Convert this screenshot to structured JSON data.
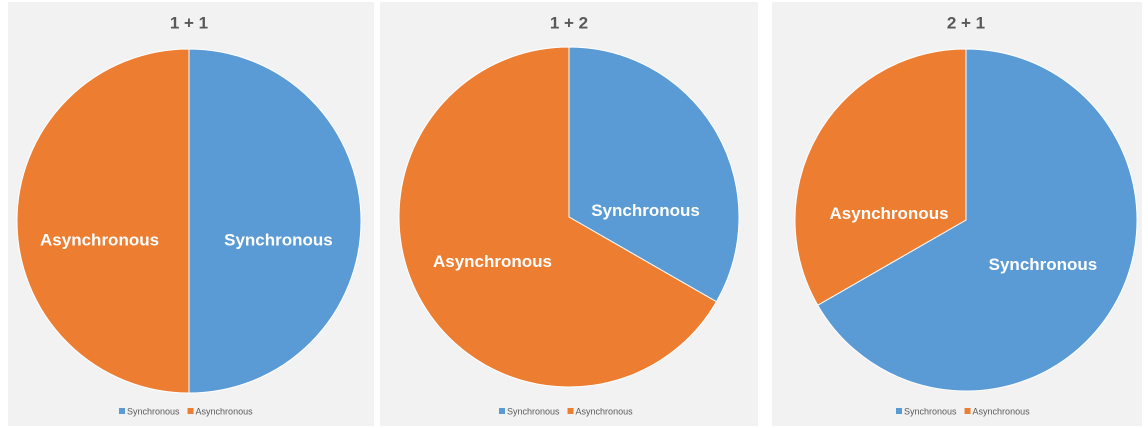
{
  "chart_data": [
    {
      "type": "pie",
      "title": "1 + 1",
      "categories": [
        "Synchronous",
        "Asynchronous"
      ],
      "values": [
        50,
        50
      ],
      "colors": [
        "#5b9bd5",
        "#ed7d31"
      ]
    },
    {
      "type": "pie",
      "title": "1 + 2",
      "categories": [
        "Synchronous",
        "Asynchronous"
      ],
      "values": [
        33.3,
        66.7
      ],
      "colors": [
        "#5b9bd5",
        "#ed7d31"
      ]
    },
    {
      "type": "pie",
      "title": "2 + 1",
      "categories": [
        "Synchronous",
        "Asynchronous"
      ],
      "values": [
        66.7,
        33.3
      ],
      "colors": [
        "#5b9bd5",
        "#ed7d31"
      ]
    }
  ]
}
